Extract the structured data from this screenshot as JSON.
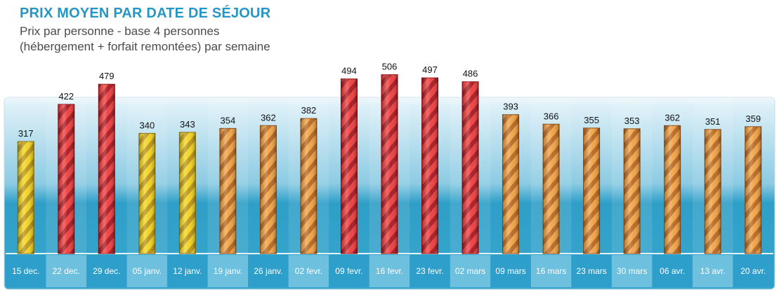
{
  "header": {
    "title": "PRIX MOYEN PAR DATE DE SÉJOUR",
    "subtitle_line1": "Prix par personne - base 4 personnes",
    "subtitle_line2": "(hébergement + forfait remontées) par semaine"
  },
  "colors": {
    "yellow": "#e8c21a",
    "orange": "#e08a2a",
    "red": "#d4222a",
    "panel_top": "#dff1f8",
    "panel_bottom": "#3aa6cc",
    "label_band_a": "#2e9fcb",
    "label_band_b": "#6ec0df"
  },
  "chart_data": {
    "type": "bar",
    "title": "PRIX MOYEN PAR DATE DE SÉJOUR",
    "subtitle": "Prix par personne - base 4 personnes (hébergement + forfait remontées) par semaine",
    "xlabel": "",
    "ylabel": "",
    "ylim": [
      0,
      520
    ],
    "grid": false,
    "categories": [
      "15 dec.",
      "22 dec.",
      "29 dec.",
      "05 janv.",
      "12 janv.",
      "19 janv.",
      "26 janv.",
      "02 fevr.",
      "09 fevr.",
      "16 fevr.",
      "23 fevr.",
      "02 mars",
      "09 mars",
      "16 mars",
      "23 mars",
      "30 mars",
      "06 avr.",
      "13 avr.",
      "20 avr."
    ],
    "values": [
      317,
      422,
      479,
      340,
      343,
      354,
      362,
      382,
      494,
      506,
      497,
      486,
      393,
      366,
      355,
      353,
      362,
      351,
      359
    ],
    "bar_colors": [
      "yellow",
      "red",
      "red",
      "yellow",
      "yellow",
      "orange",
      "orange",
      "orange",
      "red",
      "red",
      "red",
      "red",
      "orange",
      "orange",
      "orange",
      "orange",
      "orange",
      "orange",
      "orange"
    ]
  }
}
